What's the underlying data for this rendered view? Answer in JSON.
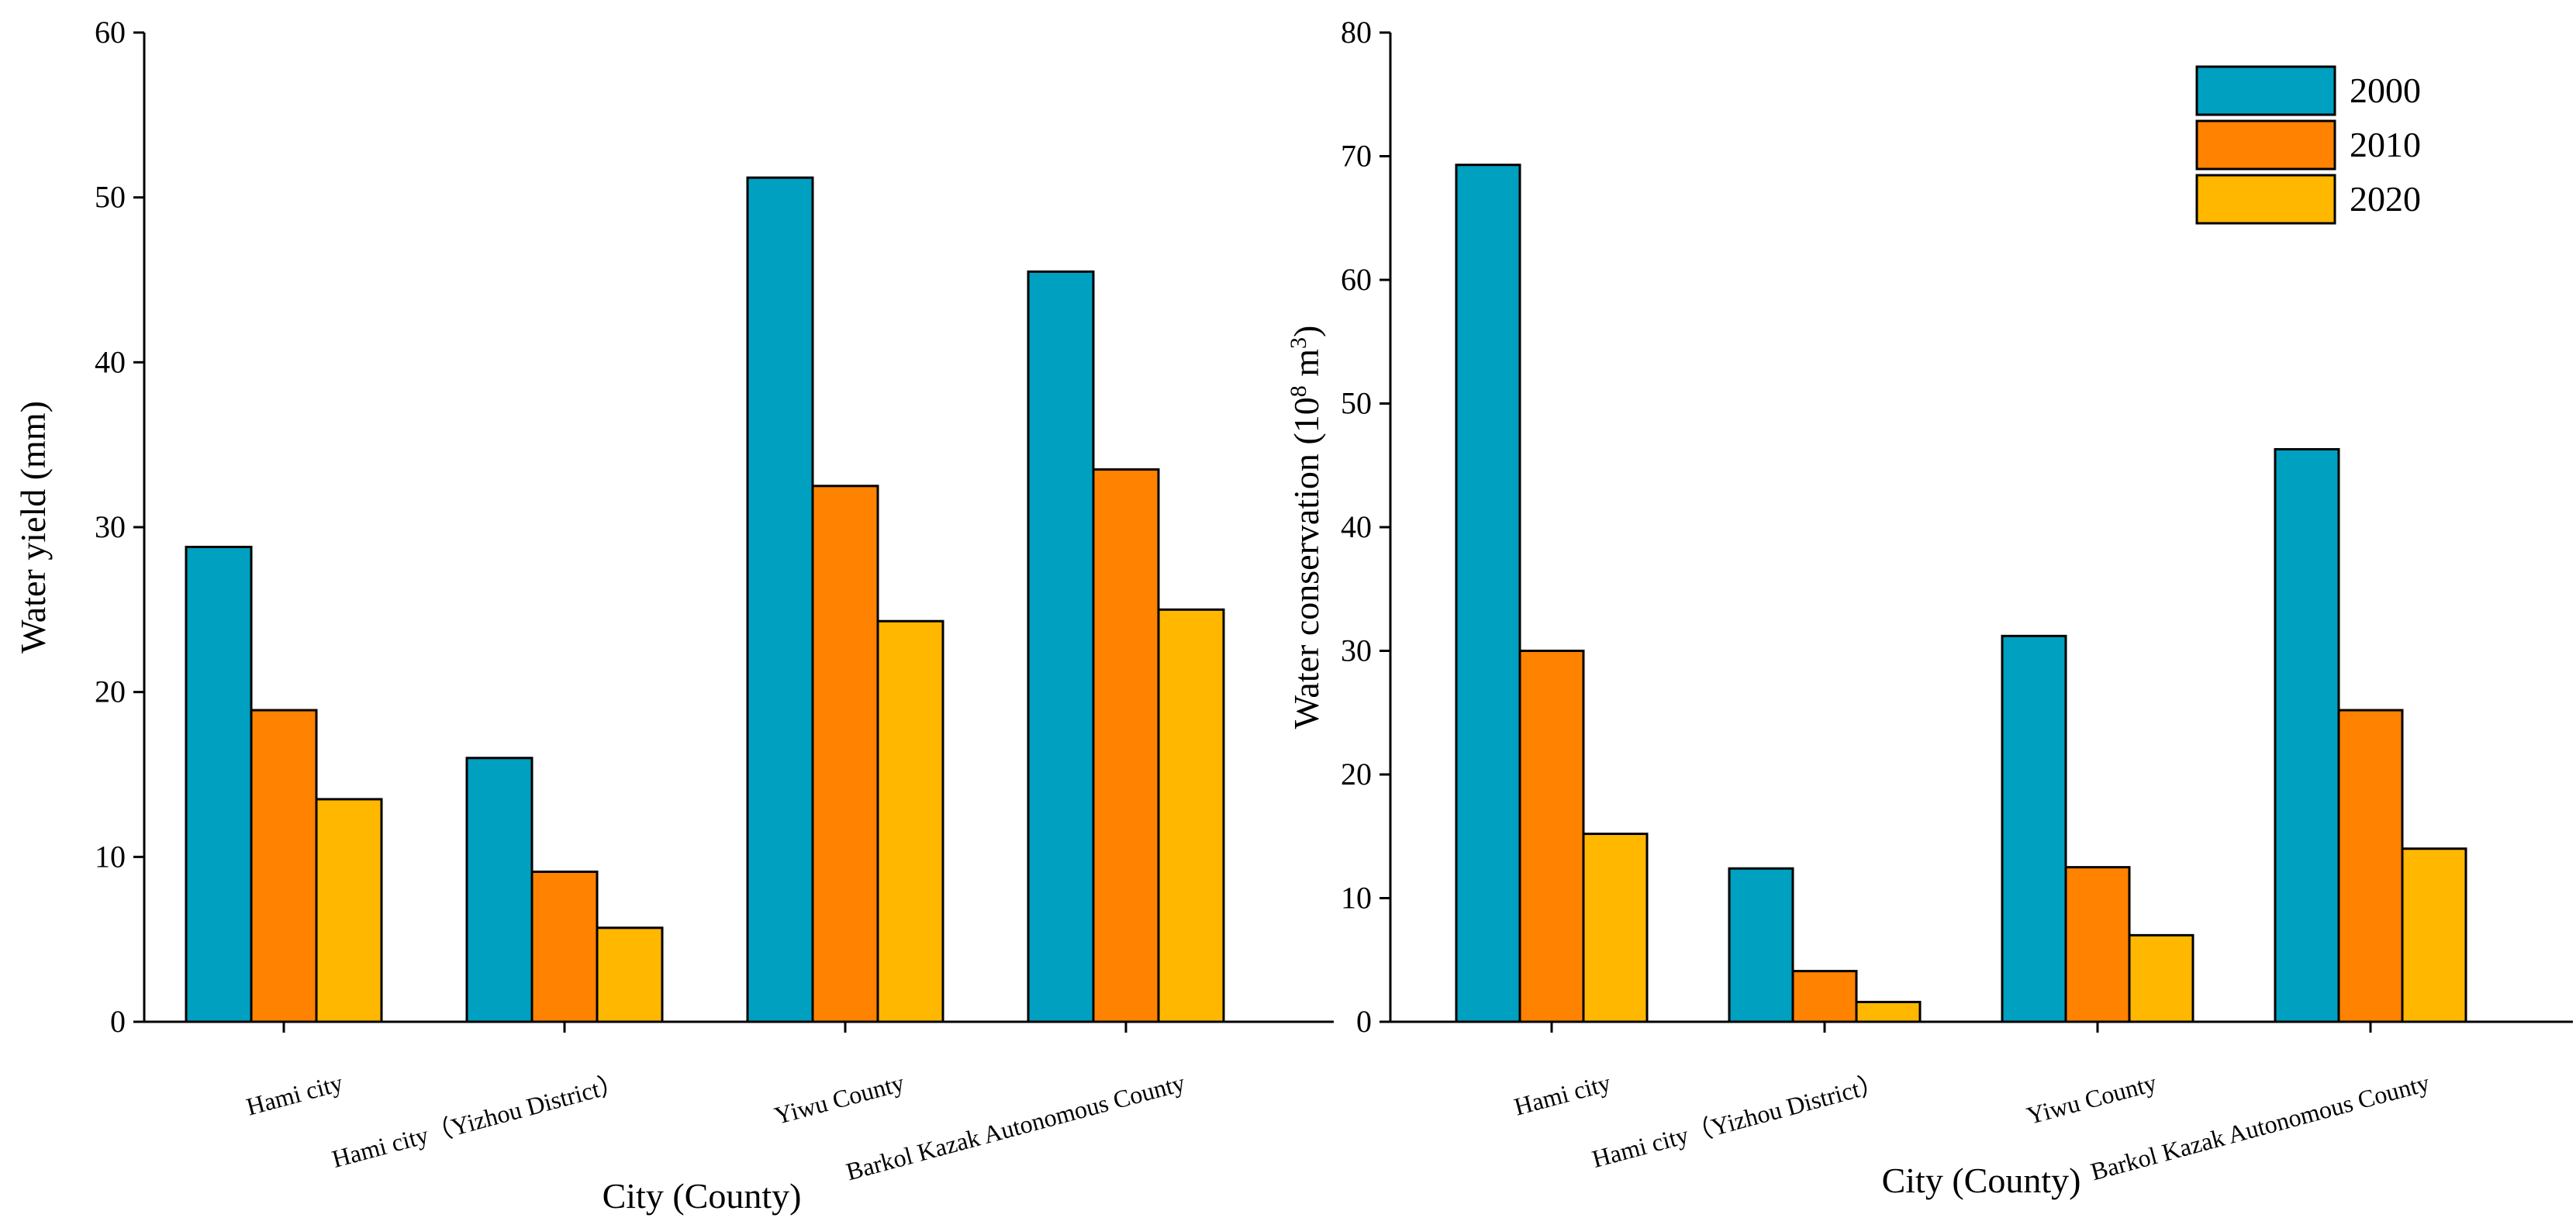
{
  "chart_data": [
    {
      "type": "bar",
      "categories": [
        "Hami city",
        "Hami city（Yizhou District）",
        "Yiwu County",
        "Barkol Kazak Autonomous County"
      ],
      "series": [
        {
          "name": "2000",
          "color": "#00A0C0",
          "values": [
            28.8,
            16.0,
            51.2,
            45.5
          ]
        },
        {
          "name": "2010",
          "color": "#FF8200",
          "values": [
            18.9,
            9.1,
            32.5,
            33.5
          ]
        },
        {
          "name": "2020",
          "color": "#FFB700",
          "values": [
            13.5,
            5.7,
            24.3,
            25.0
          ]
        }
      ],
      "xlabel": "City (County)",
      "ylabel": "Water yield (mm)",
      "ylim": [
        0,
        60
      ],
      "yticks": [
        "0",
        "10",
        "20",
        "30",
        "40",
        "50",
        "60"
      ],
      "legend": false
    },
    {
      "type": "bar",
      "categories": [
        "Hami city",
        "Hami city（Yizhou District）",
        "Yiwu County",
        "Barkol Kazak Autonomous County"
      ],
      "series": [
        {
          "name": "2000",
          "color": "#00A0C0",
          "values": [
            69.3,
            12.4,
            31.2,
            46.3
          ]
        },
        {
          "name": "2010",
          "color": "#FF8200",
          "values": [
            30.0,
            4.1,
            12.5,
            25.2
          ]
        },
        {
          "name": "2020",
          "color": "#FFB700",
          "values": [
            15.2,
            1.6,
            7.0,
            14.0
          ]
        }
      ],
      "xlabel": "City (County)",
      "ylabel": "Water conservation (10^8 m^3)",
      "ylabel_parts": {
        "base": "Water conservation (10",
        "sup1": "8",
        "mid": " m",
        "sup2": "3",
        "end": ")"
      },
      "ylim": [
        0,
        80
      ],
      "yticks": [
        "0",
        "10",
        "20",
        "30",
        "40",
        "50",
        "60",
        "70",
        "80"
      ],
      "legend": true,
      "legend_position": "top-right"
    }
  ]
}
